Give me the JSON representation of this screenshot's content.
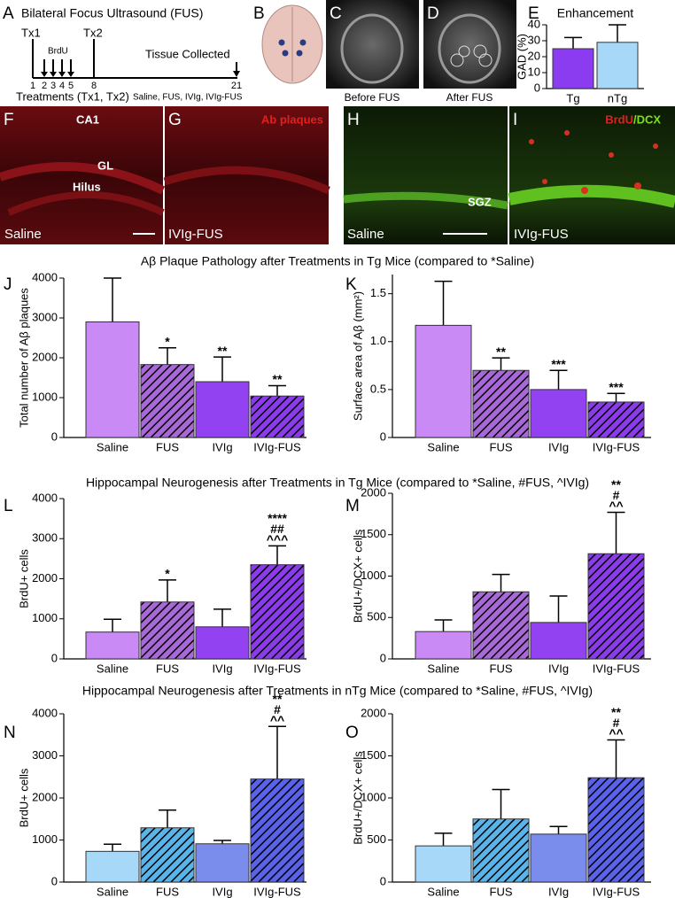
{
  "panels": {
    "a": "A",
    "b": "B",
    "c": "C",
    "d": "D",
    "e": "E",
    "f": "F",
    "g": "G",
    "h": "H",
    "i": "I",
    "j": "J",
    "k": "K",
    "l": "L",
    "m": "M",
    "n": "N",
    "o": "O"
  },
  "timeline": {
    "title": "Bilateral Focus Ultrasound (FUS)",
    "tx1": "Tx1",
    "tx2": "Tx2",
    "brdu": "BrdU",
    "tissue": "Tissue Collected",
    "days": [
      1,
      2,
      3,
      4,
      5,
      8,
      21
    ],
    "treatments_label": "Treatments (Tx1, Tx2)",
    "treatments": "Saline, FUS, IVIg, IVIg-FUS"
  },
  "images": {
    "c_caption": "Before FUS",
    "d_caption": "After FUS",
    "f_ca1": "CA1",
    "f_gl": "GL",
    "f_hilus": "Hilus",
    "f_group": "Saline",
    "g_stain": "Ab plaques",
    "g_group": "IVIg-FUS",
    "h_sgz": "SGZ",
    "h_group": "Saline",
    "i_brdu": "BrdU",
    "i_dcx": "/DCX",
    "i_group": "IVIg-FUS"
  },
  "section_titles": [
    "Aβ Plaque Pathology after Treatments in Tg Mice (compared to *Saline)",
    "Hippocampal Neurogenesis after Treatments in Tg Mice (compared to *Saline, #FUS, ^IVIg)",
    "Hippocampal Neurogenesis after Treatments in nTg Mice (compared to *Saline, #FUS, ^IVIg)"
  ],
  "chart_data": [
    {
      "type": "bar",
      "title": "Enhancement",
      "y_label": "GAD (%)",
      "categories": [
        "Tg",
        "nTg"
      ],
      "values": [
        25,
        29
      ],
      "errors": [
        7,
        11
      ],
      "colors": [
        "#8b3cf0",
        "#a8d8f7"
      ],
      "hatched": [
        false,
        false
      ],
      "annotations": [
        [],
        []
      ],
      "ylim": [
        0,
        40
      ],
      "yticks": [
        0,
        10,
        20,
        30,
        40
      ]
    },
    {
      "type": "bar",
      "y_label": "Total number of Aβ plaques",
      "categories": [
        "Saline",
        "FUS",
        "IVIg",
        "IVIg-FUS"
      ],
      "values": [
        2900,
        1830,
        1400,
        1040
      ],
      "errors": [
        1100,
        420,
        620,
        260
      ],
      "colors": [
        "#c98af5",
        "#a868d8",
        "#9242f0",
        "#8a3ce8"
      ],
      "hatched": [
        false,
        true,
        false,
        true
      ],
      "annotations": [
        [],
        [
          "*"
        ],
        [
          "**"
        ],
        [
          "**"
        ]
      ],
      "ylim": [
        0,
        4000
      ],
      "yticks": [
        0,
        1000,
        2000,
        3000,
        4000
      ]
    },
    {
      "type": "bar",
      "y_label": "Surface area of Aβ (mm²)",
      "categories": [
        "Saline",
        "FUS",
        "IVIg",
        "IVIg-FUS"
      ],
      "values": [
        1.17,
        0.7,
        0.5,
        0.37
      ],
      "errors": [
        0.46,
        0.13,
        0.2,
        0.09
      ],
      "colors": [
        "#c98af5",
        "#a868d8",
        "#9242f0",
        "#8a3ce8"
      ],
      "hatched": [
        false,
        true,
        false,
        true
      ],
      "annotations": [
        [],
        [
          "**"
        ],
        [
          "***"
        ],
        [
          "***"
        ]
      ],
      "ylim": [
        0,
        1.7
      ],
      "yticks": [
        0,
        0.5,
        {
          "value": 1.0,
          "label": "1.0"
        },
        1.5
      ]
    },
    {
      "type": "bar",
      "y_label": "BrdU+ cells",
      "categories": [
        "Saline",
        "FUS",
        "IVIg",
        "IVIg-FUS"
      ],
      "values": [
        670,
        1420,
        800,
        2350
      ],
      "errors": [
        320,
        550,
        440,
        470
      ],
      "colors": [
        "#c98af5",
        "#a868d8",
        "#9242f0",
        "#8a3ce8"
      ],
      "hatched": [
        false,
        true,
        false,
        true
      ],
      "annotations": [
        [],
        [
          "*"
        ],
        [],
        [
          "****",
          "##",
          "^^^"
        ]
      ],
      "ylim": [
        0,
        4000
      ],
      "yticks": [
        0,
        1000,
        2000,
        3000,
        4000
      ]
    },
    {
      "type": "bar",
      "y_label": "BrdU+/DCX+ cells",
      "categories": [
        "Saline",
        "FUS",
        "IVIg",
        "IVIg-FUS"
      ],
      "values": [
        330,
        810,
        440,
        1270
      ],
      "errors": [
        140,
        210,
        320,
        500
      ],
      "colors": [
        "#c98af5",
        "#a868d8",
        "#9242f0",
        "#8a3ce8"
      ],
      "hatched": [
        false,
        true,
        false,
        true
      ],
      "annotations": [
        [],
        [],
        [],
        [
          "**",
          "#",
          "^^"
        ]
      ],
      "ylim": [
        0,
        2000
      ],
      "yticks": [
        0,
        500,
        1000,
        1500,
        2000
      ]
    },
    {
      "type": "bar",
      "y_label": "BrdU+ cells",
      "categories": [
        "Saline",
        "FUS",
        "IVIg",
        "IVIg-FUS"
      ],
      "values": [
        730,
        1290,
        910,
        2450
      ],
      "errors": [
        170,
        420,
        80,
        1250
      ],
      "colors": [
        "#a8d8f7",
        "#5ab4ea",
        "#7a8cec",
        "#5a62ea"
      ],
      "hatched": [
        false,
        true,
        false,
        true
      ],
      "annotations": [
        [],
        [],
        [],
        [
          "**",
          "#",
          "^^"
        ]
      ],
      "ylim": [
        0,
        4000
      ],
      "yticks": [
        0,
        1000,
        2000,
        3000,
        4000
      ]
    },
    {
      "type": "bar",
      "y_label": "BrdU+/DCX+ cells",
      "categories": [
        "Saline",
        "FUS",
        "IVIg",
        "IVIg-FUS"
      ],
      "values": [
        430,
        750,
        570,
        1240
      ],
      "errors": [
        150,
        350,
        90,
        450
      ],
      "colors": [
        "#a8d8f7",
        "#5ab4ea",
        "#7a8cec",
        "#5a62ea"
      ],
      "hatched": [
        false,
        true,
        false,
        true
      ],
      "annotations": [
        [],
        [],
        [],
        [
          "**",
          "#",
          "^^"
        ]
      ],
      "ylim": [
        0,
        2000
      ],
      "yticks": [
        0,
        500,
        1000,
        1500,
        2000
      ]
    }
  ]
}
